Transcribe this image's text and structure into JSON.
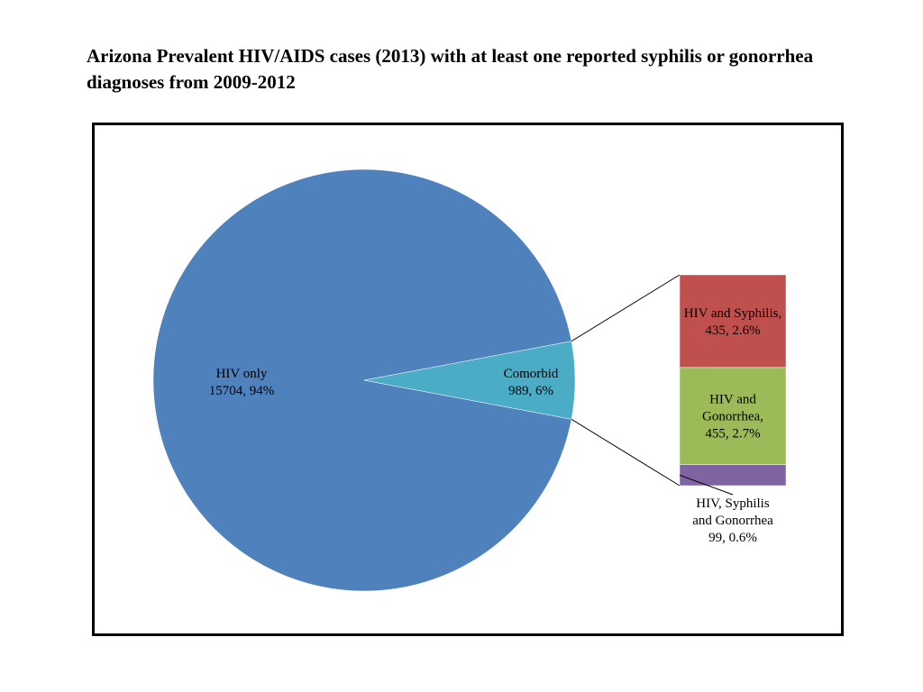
{
  "chart_data": {
    "type": "pie",
    "title": "Arizona Prevalent HIV/AIDS cases (2013) with at least one reported syphilis or gonorrhea diagnoses from 2009-2012",
    "pie_slices": [
      {
        "key": "hiv_only",
        "label_lines": [
          "HIV only",
          "15704, 94%"
        ],
        "value": 15704,
        "percent": 94,
        "color": "#4F81BD"
      },
      {
        "key": "comorbid",
        "label_lines": [
          "Comorbid",
          "989, 6%"
        ],
        "value": 989,
        "percent": 6,
        "color": "#4BACC6"
      }
    ],
    "breakout_of": "comorbid",
    "bar_segments": [
      {
        "key": "hiv_syphilis",
        "label_lines": [
          "HIV and Syphilis,",
          "435, 2.6%"
        ],
        "value": 435,
        "percent": 2.6,
        "color": "#C0504D"
      },
      {
        "key": "hiv_gonorrhea",
        "label_lines": [
          "HIV and",
          "Gonorrhea,",
          "455, 2.7%"
        ],
        "value": 455,
        "percent": 2.7,
        "color": "#9BBB59"
      },
      {
        "key": "hiv_syphilis_gonorrhea",
        "label_lines": [
          "HIV, Syphilis",
          "and Gonorrhea",
          "99, 0.6%"
        ],
        "value": 99,
        "percent": 0.6,
        "color": "#8064A2"
      }
    ],
    "legend": "none"
  }
}
